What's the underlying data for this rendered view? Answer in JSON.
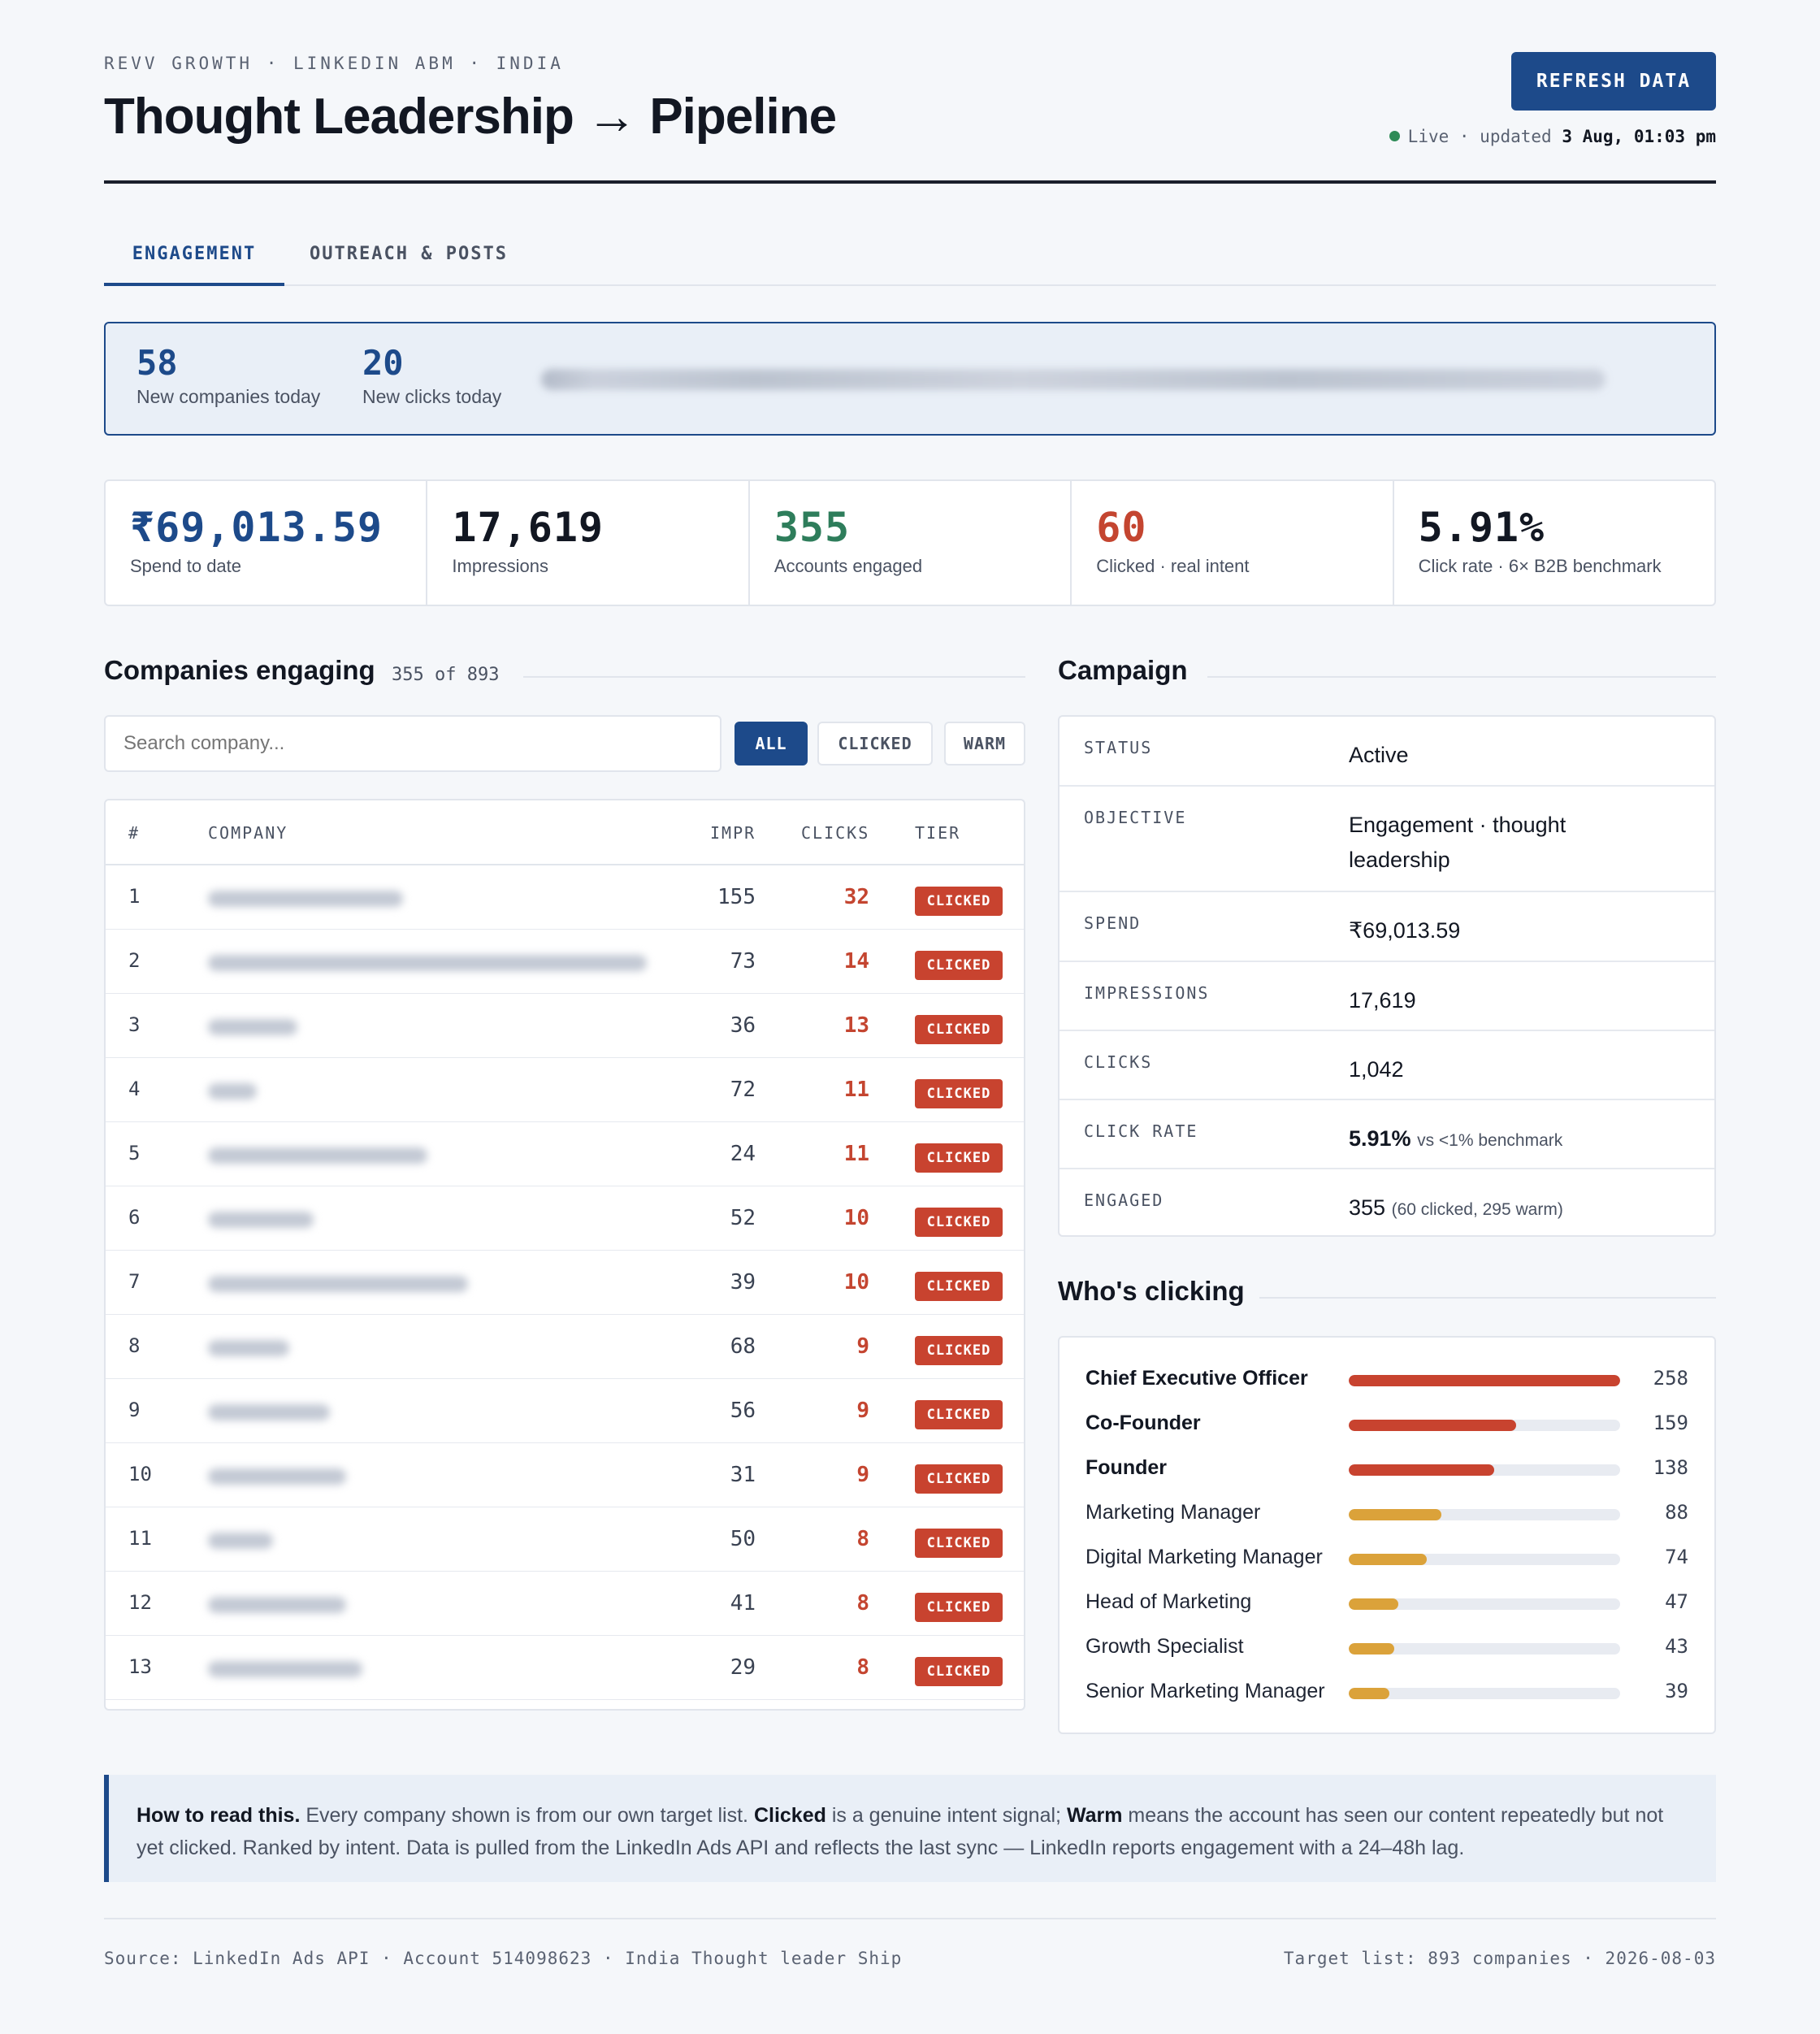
{
  "header": {
    "eyebrow": "REVV GROWTH · LINKEDIN ABM · INDIA",
    "title": "Thought Leadership → Pipeline",
    "refresh_label": "REFRESH DATA",
    "live_label": "Live · updated",
    "updated_at": "3 Aug, 01:03 pm"
  },
  "tabs": [
    {
      "label": "ENGAGEMENT",
      "active": true
    },
    {
      "label": "OUTREACH & POSTS",
      "active": false
    }
  ],
  "today": {
    "new_companies": "58",
    "new_companies_label": "New companies today",
    "new_clicks": "20",
    "new_clicks_label": "New clicks today"
  },
  "kpis": [
    {
      "value": "₹69,013.59",
      "label": "Spend to date",
      "color": "#1d4a8a"
    },
    {
      "value": "17,619",
      "label": "Impressions",
      "color": "#121722"
    },
    {
      "value": "355",
      "label": "Accounts engaged",
      "color": "#2e7d5b"
    },
    {
      "value": "60",
      "label": "Clicked · real intent",
      "color": "#c44530"
    },
    {
      "value": "5.91%",
      "label": "Click rate · 6× B2B benchmark",
      "color": "#121722"
    }
  ],
  "companies": {
    "title": "Companies engaging",
    "count_label": "355 of 893",
    "search_placeholder": "Search company...",
    "filters": [
      "ALL",
      "CLICKED",
      "WARM"
    ],
    "columns": [
      "#",
      "COMPANY",
      "IMPR",
      "CLICKS",
      "TIER"
    ],
    "rows": [
      {
        "idx": "1",
        "impr": "155",
        "clicks": "32",
        "tier": "CLICKED"
      },
      {
        "idx": "2",
        "impr": "73",
        "clicks": "14",
        "tier": "CLICKED"
      },
      {
        "idx": "3",
        "impr": "36",
        "clicks": "13",
        "tier": "CLICKED"
      },
      {
        "idx": "4",
        "impr": "72",
        "clicks": "11",
        "tier": "CLICKED"
      },
      {
        "idx": "5",
        "impr": "24",
        "clicks": "11",
        "tier": "CLICKED"
      },
      {
        "idx": "6",
        "impr": "52",
        "clicks": "10",
        "tier": "CLICKED"
      },
      {
        "idx": "7",
        "impr": "39",
        "clicks": "10",
        "tier": "CLICKED"
      },
      {
        "idx": "8",
        "impr": "68",
        "clicks": "9",
        "tier": "CLICKED"
      },
      {
        "idx": "9",
        "impr": "56",
        "clicks": "9",
        "tier": "CLICKED"
      },
      {
        "idx": "10",
        "impr": "31",
        "clicks": "9",
        "tier": "CLICKED"
      },
      {
        "idx": "11",
        "impr": "50",
        "clicks": "8",
        "tier": "CLICKED"
      },
      {
        "idx": "12",
        "impr": "41",
        "clicks": "8",
        "tier": "CLICKED"
      },
      {
        "idx": "13",
        "impr": "29",
        "clicks": "8",
        "tier": "CLICKED"
      }
    ]
  },
  "campaign": {
    "title": "Campaign",
    "status_key": "STATUS",
    "status": "Active",
    "objective_key": "OBJECTIVE",
    "objective": "Engagement · thought leadership",
    "spend_key": "SPEND",
    "spend": "₹69,013.59",
    "impressions_key": "IMPRESSIONS",
    "impressions": "17,619",
    "clicks_key": "CLICKS",
    "clicks": "1,042",
    "click_rate_key": "CLICK RATE",
    "click_rate": "5.91%",
    "click_rate_note": "vs <1% benchmark",
    "engaged_key": "ENGAGED",
    "engaged": "355",
    "engaged_note": "(60 clicked, 295 warm)"
  },
  "whos_clicking": {
    "title": "Who's clicking",
    "roles": [
      {
        "name": "Chief Executive Officer",
        "count": 258,
        "count_label": "258",
        "color": "#c8432f",
        "strong": true
      },
      {
        "name": "Co-Founder",
        "count": 159,
        "count_label": "159",
        "color": "#c8432f",
        "strong": true
      },
      {
        "name": "Founder",
        "count": 138,
        "count_label": "138",
        "color": "#c8432f",
        "strong": true
      },
      {
        "name": "Marketing Manager",
        "count": 88,
        "count_label": "88",
        "color": "#dba23a",
        "strong": false
      },
      {
        "name": "Digital Marketing Manager",
        "count": 74,
        "count_label": "74",
        "color": "#dba23a",
        "strong": false
      },
      {
        "name": "Head of Marketing",
        "count": 47,
        "count_label": "47",
        "color": "#dba23a",
        "strong": false
      },
      {
        "name": "Growth Specialist",
        "count": 43,
        "count_label": "43",
        "color": "#dba23a",
        "strong": false
      },
      {
        "name": "Senior Marketing Manager",
        "count": 39,
        "count_label": "39",
        "color": "#dba23a",
        "strong": false
      }
    ]
  },
  "note": {
    "lead": "How to read this.",
    "t1": " Every company shown is from our own target list. ",
    "clicked": "Clicked",
    "t2": " is a genuine intent signal; ",
    "warm": "Warm",
    "t3": " means the account has seen our content repeatedly but not yet clicked. Ranked by intent. Data is pulled from the LinkedIn Ads API and reflects the last sync — LinkedIn reports engagement with a 24–48h lag."
  },
  "footer": {
    "left": "Source: LinkedIn Ads API · Account 514098623 · India Thought leader Ship",
    "right": "Target list: 893 companies · 2026-08-03"
  }
}
